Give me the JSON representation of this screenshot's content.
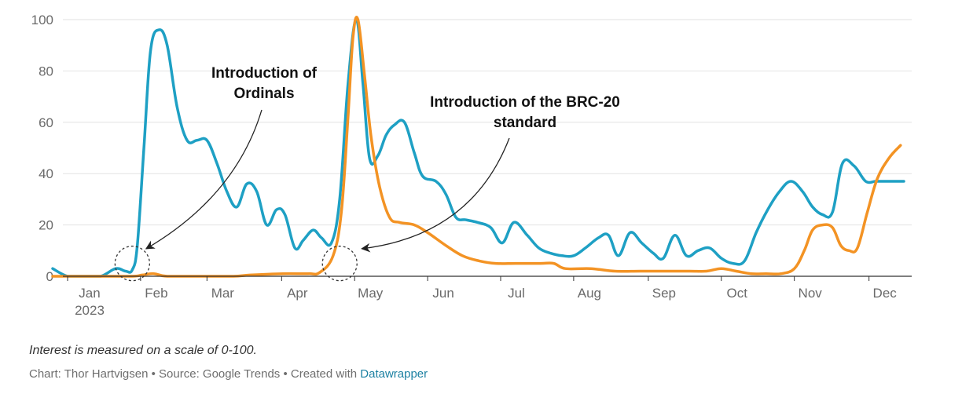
{
  "chart_data": {
    "type": "line",
    "title": "",
    "xlabel": "",
    "ylabel": "",
    "ylim": [
      0,
      100
    ],
    "yticks": [
      0,
      20,
      40,
      60,
      80,
      100
    ],
    "xlim": [
      0,
      50.4
    ],
    "x_unit": "weeks since start of January 2023",
    "month_ticks": [
      {
        "label": "Jan",
        "x": 0
      },
      {
        "label": "Feb",
        "x": 4.4
      },
      {
        "label": "Mar",
        "x": 8.4
      },
      {
        "label": "Apr",
        "x": 12.9
      },
      {
        "label": "May",
        "x": 17.3
      },
      {
        "label": "Jun",
        "x": 21.7
      },
      {
        "label": "Jul",
        "x": 26.1
      },
      {
        "label": "Aug",
        "x": 30.5
      },
      {
        "label": "Sep",
        "x": 35
      },
      {
        "label": "Oct",
        "x": 39.4
      },
      {
        "label": "Nov",
        "x": 43.8
      },
      {
        "label": "Dec",
        "x": 48.3
      }
    ],
    "year_label": "2023",
    "series": [
      {
        "name": "Ordinals",
        "color": "#1ea0c4",
        "x": [
          -0.9,
          0,
          1,
          2,
          2.9,
          3.5,
          3.9,
          4.2,
          4.6,
          5,
          5.5,
          6,
          6.6,
          7.2,
          7.8,
          8.4,
          9,
          9.6,
          10.2,
          10.8,
          11.4,
          12,
          12.6,
          13.1,
          13.7,
          14.2,
          14.8,
          15.3,
          15.9,
          16.4,
          16.9,
          17.4,
          17.8,
          18.2,
          18.7,
          19.2,
          19.7,
          20.3,
          20.9,
          21.4,
          22.2,
          22.8,
          23.4,
          24,
          24.7,
          25.5,
          26.2,
          26.9,
          27.7,
          28.4,
          29.1,
          29.8,
          30.5,
          31.2,
          32,
          32.6,
          33.2,
          33.9,
          34.6,
          35.3,
          35.9,
          36.6,
          37.3,
          38,
          38.7,
          39.4,
          40.1,
          40.8,
          41.5,
          42.2,
          42.9,
          43.6,
          44.3,
          44.9,
          45.5,
          46.1,
          46.7,
          47.4,
          48.1,
          48.7,
          49.2,
          49.7,
          50.4
        ],
        "y": [
          3,
          0,
          0,
          0,
          3,
          2,
          2.5,
          12,
          50,
          88,
          96,
          90,
          66,
          53,
          53,
          53,
          44,
          33,
          27,
          36,
          33,
          20,
          26,
          24,
          11,
          14,
          18,
          15,
          13,
          30,
          75,
          100,
          75,
          46,
          47,
          55,
          59,
          60,
          48,
          39,
          37,
          32,
          23,
          22,
          21,
          19,
          13,
          21,
          16,
          11,
          9,
          8,
          8,
          11,
          15,
          16,
          8,
          17,
          13,
          9,
          7,
          16,
          8,
          10,
          11,
          7,
          5,
          6,
          17,
          26,
          33,
          37,
          33,
          27,
          24,
          25,
          44,
          43,
          37,
          37,
          37,
          37,
          37
        ]
      },
      {
        "name": "BRC-20",
        "color": "#f39324",
        "x": [
          -0.9,
          0,
          2,
          3.9,
          4.5,
          5.2,
          6,
          8,
          10,
          11,
          13,
          14.5,
          15.2,
          16,
          16.5,
          16.9,
          17.2,
          17.5,
          17.9,
          18.3,
          18.8,
          19.4,
          20,
          20.9,
          21.7,
          22.8,
          23.8,
          24.8,
          25.8,
          27,
          28.5,
          29.3,
          30,
          31.5,
          33,
          34.5,
          36,
          37.5,
          38.5,
          39.4,
          40.3,
          41.2,
          42.1,
          43,
          43.8,
          44.4,
          44.9,
          45.5,
          46.1,
          46.6,
          47.1,
          47.6,
          48.2,
          48.8,
          49.5,
          50.2
        ],
        "y": [
          0,
          0,
          0,
          0,
          0.5,
          1,
          0,
          0,
          0,
          0.5,
          1,
          1,
          1.5,
          8,
          25,
          62,
          93,
          100,
          78,
          54,
          35,
          23,
          21,
          20,
          17,
          12,
          8,
          6,
          5,
          5,
          5,
          5,
          3,
          3,
          2,
          2,
          2,
          2,
          2,
          3,
          2,
          1,
          1,
          1,
          3,
          10,
          18,
          20,
          19,
          12,
          10,
          11,
          25,
          38,
          46,
          51
        ]
      }
    ],
    "annotations": [
      {
        "lines": [
          "Introduction of",
          "Ordinals"
        ],
        "target_x": 3.5,
        "target_y": 4
      },
      {
        "lines": [
          "Introduction of the BRC-20",
          "standard"
        ],
        "target_x": 16.5,
        "target_y": 4
      }
    ],
    "highlight_circles": [
      {
        "x": 3.9,
        "y": 5
      },
      {
        "x": 16.4,
        "y": 5
      }
    ]
  },
  "footer": {
    "note": "Interest is measured on a scale of 0-100.",
    "credit_prefix": "Chart: Thor Hartvigsen • Source: Google Trends • Created with ",
    "credit_link": "Datawrapper"
  }
}
